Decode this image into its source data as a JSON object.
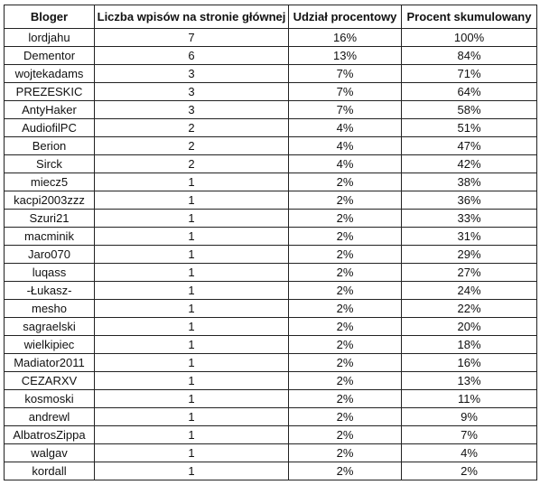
{
  "table": {
    "header": [
      "Bloger",
      "Liczba wpisów na stronie głównej",
      "Udział procentowy",
      "Procent skumulowany"
    ],
    "rows": [
      [
        "lordjahu",
        "7",
        "16%",
        "100%"
      ],
      [
        "Dementor",
        "6",
        "13%",
        "84%"
      ],
      [
        "wojtekadams",
        "3",
        "7%",
        "71%"
      ],
      [
        "PREZESKIC",
        "3",
        "7%",
        "64%"
      ],
      [
        "AntyHaker",
        "3",
        "7%",
        "58%"
      ],
      [
        "AudiofilPC",
        "2",
        "4%",
        "51%"
      ],
      [
        "Berion",
        "2",
        "4%",
        "47%"
      ],
      [
        "Sirck",
        "2",
        "4%",
        "42%"
      ],
      [
        "miecz5",
        "1",
        "2%",
        "38%"
      ],
      [
        "kacpi2003zzz",
        "1",
        "2%",
        "36%"
      ],
      [
        "Szuri21",
        "1",
        "2%",
        "33%"
      ],
      [
        "macminik",
        "1",
        "2%",
        "31%"
      ],
      [
        "Jaro070",
        "1",
        "2%",
        "29%"
      ],
      [
        "luqass",
        "1",
        "2%",
        "27%"
      ],
      [
        "-Łukasz-",
        "1",
        "2%",
        "24%"
      ],
      [
        "mesho",
        "1",
        "2%",
        "22%"
      ],
      [
        "sagraelski",
        "1",
        "2%",
        "20%"
      ],
      [
        "wielkipiec",
        "1",
        "2%",
        "18%"
      ],
      [
        "Madiator2011",
        "1",
        "2%",
        "16%"
      ],
      [
        "CEZARXV",
        "1",
        "2%",
        "13%"
      ],
      [
        "kosmoski",
        "1",
        "2%",
        "11%"
      ],
      [
        "andrewl",
        "1",
        "2%",
        "9%"
      ],
      [
        "AlbatrosZippa",
        "1",
        "2%",
        "7%"
      ],
      [
        "walgav",
        "1",
        "2%",
        "4%"
      ],
      [
        "kordall",
        "1",
        "2%",
        "2%"
      ]
    ]
  }
}
